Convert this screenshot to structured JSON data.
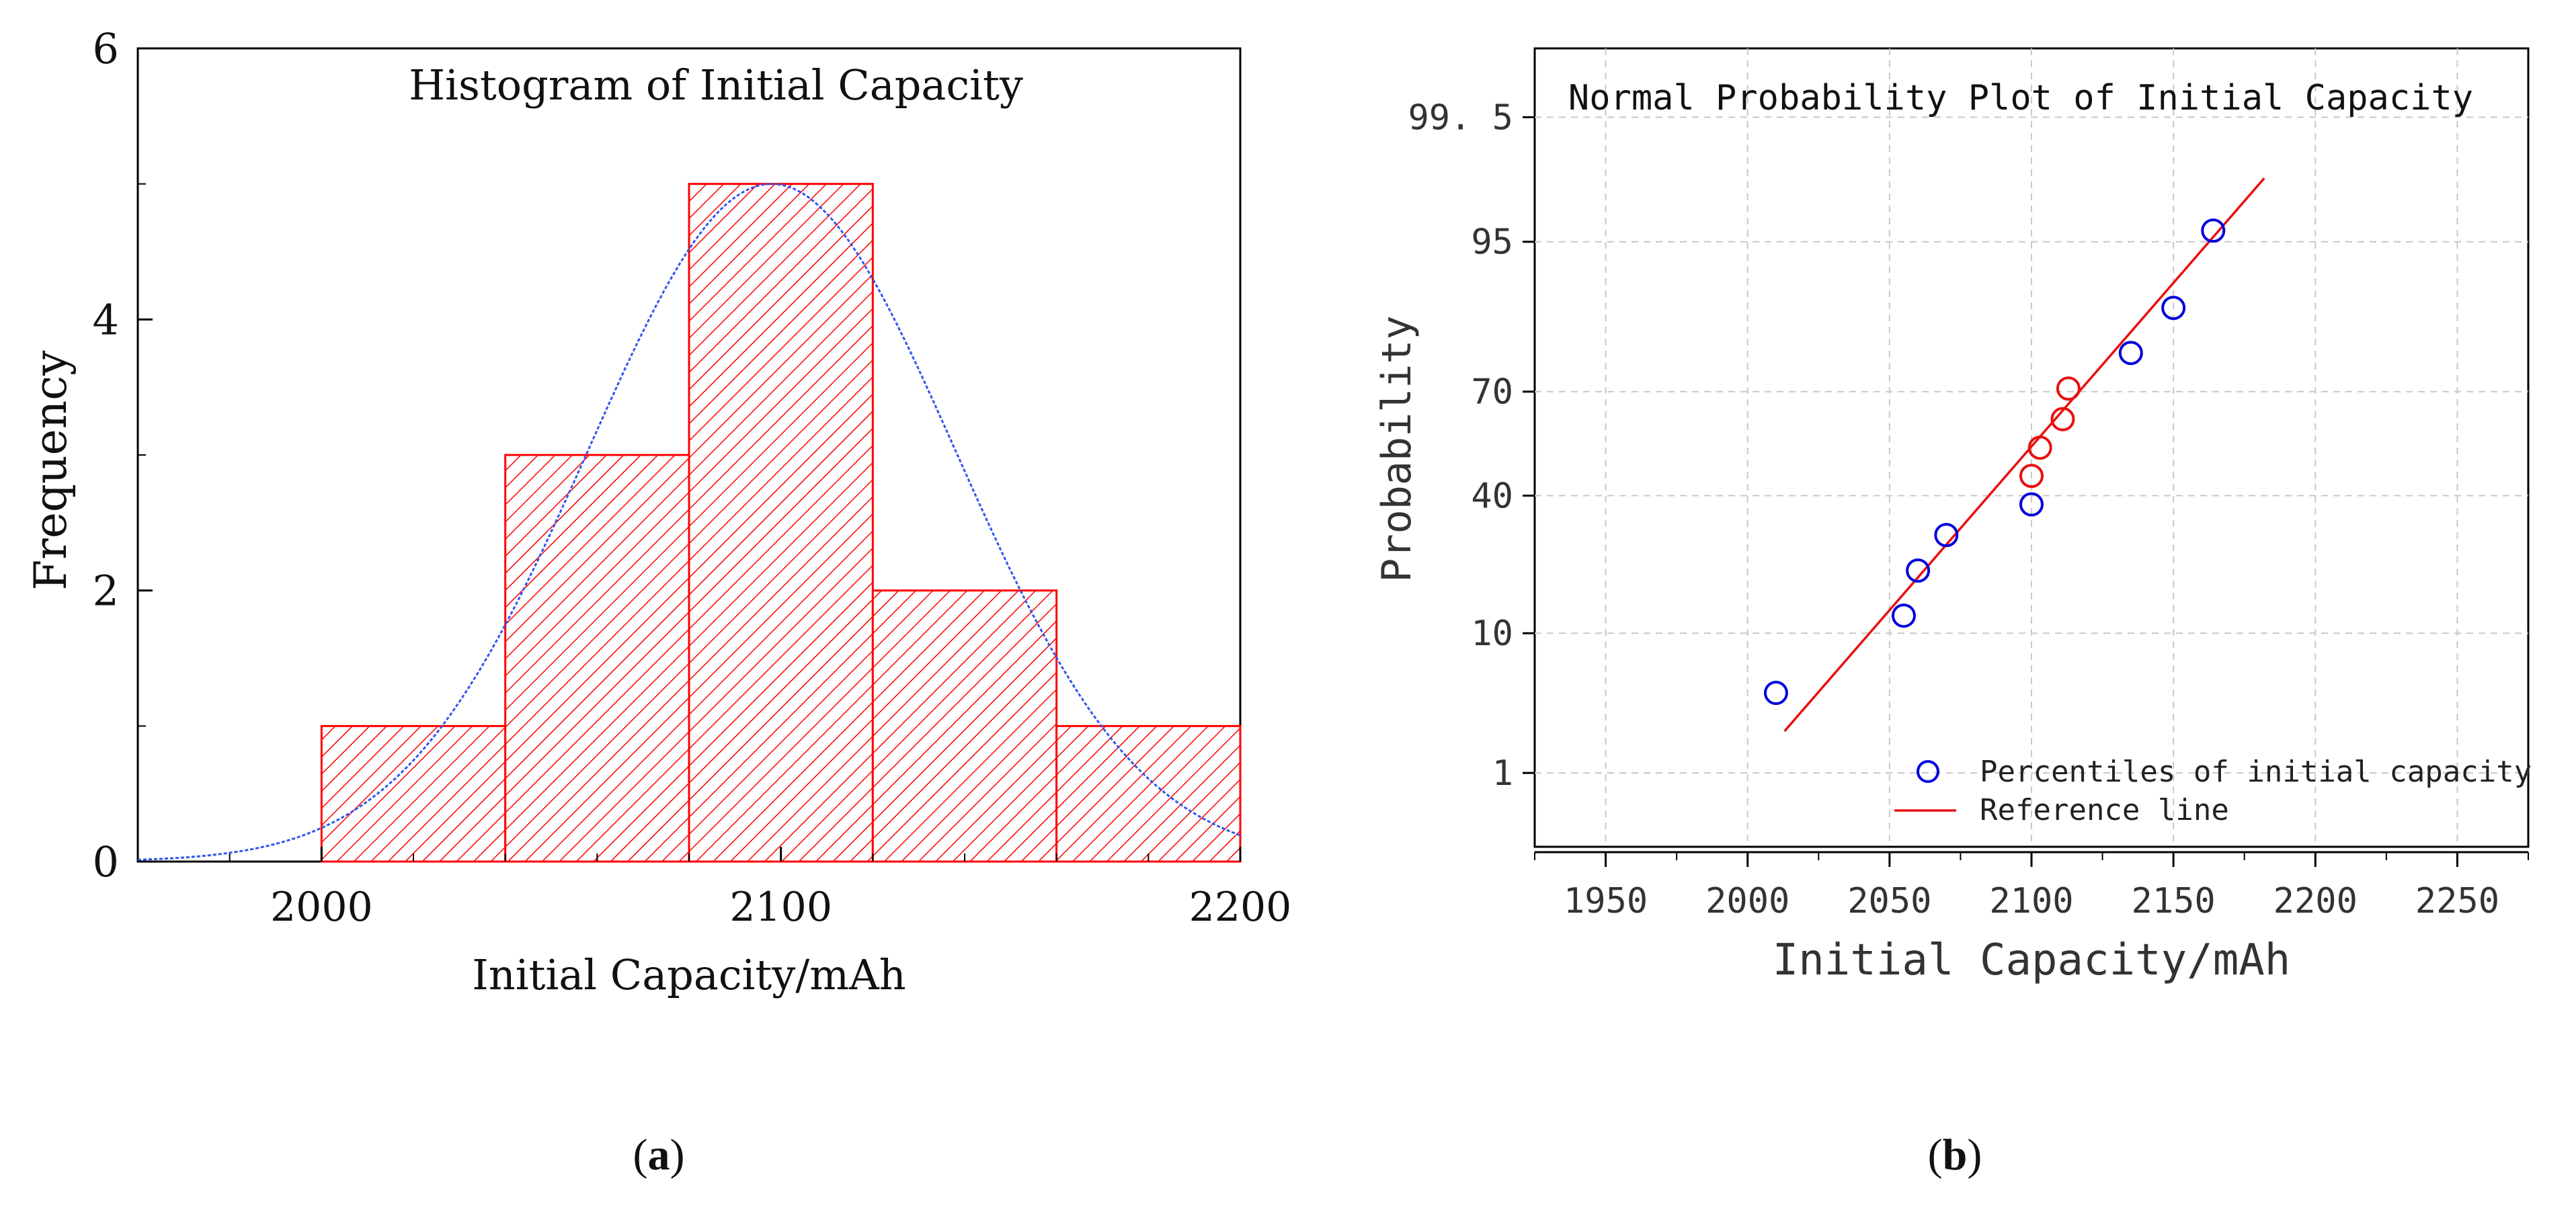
{
  "panels": {
    "a": {
      "caption_open": "(",
      "caption_letter": "a",
      "caption_close": ")"
    },
    "b": {
      "caption_open": "(",
      "caption_letter": "b",
      "caption_close": ")"
    }
  },
  "chart_data": [
    {
      "id": "a",
      "type": "bar",
      "title": "Histogram of Initial Capacity",
      "xlabel": "Initial Capacity/mAh",
      "ylabel": "Frequency",
      "xlim": [
        1960,
        2200
      ],
      "ylim": [
        0,
        6
      ],
      "x_ticks": [
        "2000",
        "2100",
        "2200"
      ],
      "x_tick_values": [
        2000,
        2100,
        2200
      ],
      "y_ticks": [
        "0",
        "2",
        "4",
        "6"
      ],
      "y_tick_values": [
        0,
        2,
        4,
        6
      ],
      "bins": [
        {
          "start": 2000,
          "end": 2040,
          "count": 1
        },
        {
          "start": 2040,
          "end": 2080,
          "count": 3
        },
        {
          "start": 2080,
          "end": 2120,
          "count": 5
        },
        {
          "start": 2120,
          "end": 2160,
          "count": 2
        },
        {
          "start": 2160,
          "end": 2200,
          "count": 1
        }
      ],
      "fit_curve": {
        "kind": "normal",
        "mean": 2098,
        "sd": 40,
        "peak": 5
      },
      "colors": {
        "bar": "#ff0000",
        "curve": "#3355ee"
      }
    },
    {
      "id": "b",
      "type": "scatter",
      "title": "Normal Probability Plot of Initial Capacity",
      "xlabel": "Initial Capacity/mAh",
      "ylabel": "Probability",
      "xlim": [
        1925,
        2275
      ],
      "ylim_percent": [
        0.2,
        99.9
      ],
      "x_ticks": [
        "1950",
        "2000",
        "2050",
        "2100",
        "2150",
        "2200",
        "2250"
      ],
      "x_tick_values": [
        1950,
        2000,
        2050,
        2100,
        2150,
        2200,
        2250
      ],
      "y_ticks": [
        "1",
        "10",
        "40",
        "70",
        "95",
        "99. 5"
      ],
      "y_tick_values": [
        1,
        10,
        40,
        70,
        95,
        99.5
      ],
      "points": [
        {
          "x": 2010,
          "p": 4.2,
          "color": "#0000dd"
        },
        {
          "x": 2055,
          "p": 12.5,
          "color": "#0000dd"
        },
        {
          "x": 2060,
          "p": 20.8,
          "color": "#0000dd"
        },
        {
          "x": 2070,
          "p": 29.2,
          "color": "#0000dd"
        },
        {
          "x": 2100,
          "p": 37.5,
          "color": "#0000dd"
        },
        {
          "x": 2100,
          "p": 45.8,
          "color": "#e81010"
        },
        {
          "x": 2103,
          "p": 54.2,
          "color": "#e81010"
        },
        {
          "x": 2111,
          "p": 62.5,
          "color": "#e81010"
        },
        {
          "x": 2113,
          "p": 70.8,
          "color": "#e81010"
        },
        {
          "x": 2135,
          "p": 79.2,
          "color": "#0000dd"
        },
        {
          "x": 2150,
          "p": 87.5,
          "color": "#0000dd"
        },
        {
          "x": 2164,
          "p": 95.8,
          "color": "#0000dd"
        }
      ],
      "reference_line": {
        "x_start": 2013,
        "p_start": 2.2,
        "x_end": 2182,
        "p_end": 98.3
      },
      "legend": {
        "position": "bottom-right",
        "items": [
          {
            "label": "Percentiles of initial capacity",
            "kind": "marker",
            "color": "#0000dd"
          },
          {
            "label": "Reference line",
            "kind": "line",
            "color": "#e81010"
          }
        ]
      }
    }
  ]
}
